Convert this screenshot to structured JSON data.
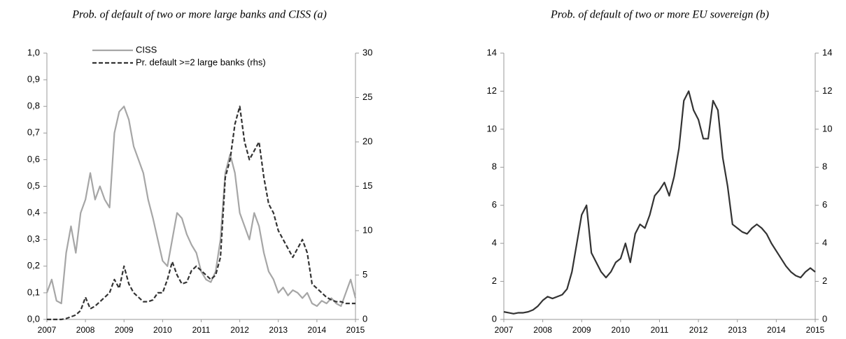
{
  "chart_data": [
    {
      "type": "line",
      "title": "Prob. of default of two or more large banks and CISS (a)",
      "x": [
        2007,
        2007.125,
        2007.25,
        2007.375,
        2007.5,
        2007.625,
        2007.75,
        2007.875,
        2008,
        2008.125,
        2008.25,
        2008.375,
        2008.5,
        2008.625,
        2008.75,
        2008.875,
        2009,
        2009.125,
        2009.25,
        2009.375,
        2009.5,
        2009.625,
        2009.75,
        2009.875,
        2010,
        2010.125,
        2010.25,
        2010.375,
        2010.5,
        2010.625,
        2010.75,
        2010.875,
        2011,
        2011.125,
        2011.25,
        2011.375,
        2011.5,
        2011.625,
        2011.75,
        2011.875,
        2012,
        2012.125,
        2012.25,
        2012.375,
        2012.5,
        2012.625,
        2012.75,
        2012.875,
        2013,
        2013.125,
        2013.25,
        2013.375,
        2013.5,
        2013.625,
        2013.75,
        2013.875,
        2014,
        2014.125,
        2014.25,
        2014.375,
        2014.5,
        2014.625,
        2014.75,
        2014.875,
        2015
      ],
      "series": [
        {
          "name": "CISS",
          "color": "#a6a6a6",
          "line_style": "solid",
          "values": [
            0.1,
            0.15,
            0.07,
            0.06,
            0.25,
            0.35,
            0.25,
            0.4,
            0.45,
            0.55,
            0.45,
            0.5,
            0.45,
            0.42,
            0.7,
            0.78,
            0.8,
            0.75,
            0.65,
            0.6,
            0.55,
            0.45,
            0.38,
            0.3,
            0.22,
            0.2,
            0.3,
            0.4,
            0.38,
            0.32,
            0.28,
            0.25,
            0.18,
            0.15,
            0.14,
            0.18,
            0.3,
            0.55,
            0.62,
            0.55,
            0.4,
            0.35,
            0.3,
            0.4,
            0.35,
            0.25,
            0.18,
            0.15,
            0.1,
            0.12,
            0.09,
            0.11,
            0.1,
            0.08,
            0.1,
            0.06,
            0.05,
            0.07,
            0.06,
            0.08,
            0.06,
            0.05,
            0.1,
            0.15,
            0.08
          ]
        },
        {
          "name": "Pr. default >=2 large banks (rhs)",
          "color": "#333333",
          "line_style": "dashed",
          "axis": "y2",
          "values": [
            0,
            0,
            0,
            0,
            0.1,
            0.3,
            0.5,
            1.0,
            2.5,
            1.2,
            1.5,
            2.0,
            2.5,
            3.0,
            4.5,
            3.5,
            6.0,
            4.0,
            3.0,
            2.5,
            2.0,
            2.0,
            2.2,
            3.0,
            3.0,
            4.5,
            6.5,
            5.0,
            4.0,
            4.2,
            5.5,
            6.0,
            5.5,
            5.0,
            4.5,
            5.0,
            7.0,
            16.0,
            18.0,
            22.0,
            24.0,
            20.0,
            18.0,
            19.0,
            20.0,
            16.0,
            13.0,
            12.0,
            10.0,
            9.0,
            8.0,
            7.0,
            8.0,
            9.0,
            7.5,
            4.0,
            3.5,
            3.0,
            2.5,
            2.2,
            2.0,
            2.0,
            1.8,
            1.8,
            1.8
          ]
        }
      ],
      "xlim": [
        2007,
        2015
      ],
      "xticks": [
        2007,
        2008,
        2009,
        2010,
        2011,
        2012,
        2013,
        2014,
        2015
      ],
      "ylim": [
        0,
        1
      ],
      "yticks": [
        {
          "value": 0,
          "label": "0,0"
        },
        {
          "value": 0.1,
          "label": "0,1"
        },
        {
          "value": 0.2,
          "label": "0,2"
        },
        {
          "value": 0.3,
          "label": "0,3"
        },
        {
          "value": 0.4,
          "label": "0,4"
        },
        {
          "value": 0.5,
          "label": "0,5"
        },
        {
          "value": 0.6,
          "label": "0,6"
        },
        {
          "value": 0.7,
          "label": "0,7"
        },
        {
          "value": 0.8,
          "label": "0,8"
        },
        {
          "value": 0.9,
          "label": "0,9"
        },
        {
          "value": 1,
          "label": "1,0"
        }
      ],
      "y2lim": [
        0,
        30
      ],
      "y2ticks": [
        0,
        5,
        10,
        15,
        20,
        25,
        30
      ],
      "legend": "upper left"
    },
    {
      "type": "line",
      "title": "Prob. of default of two or more EU sovereign (b)",
      "x": [
        2007,
        2007.125,
        2007.25,
        2007.375,
        2007.5,
        2007.625,
        2007.75,
        2007.875,
        2008,
        2008.125,
        2008.25,
        2008.375,
        2008.5,
        2008.625,
        2008.75,
        2008.875,
        2009,
        2009.125,
        2009.25,
        2009.375,
        2009.5,
        2009.625,
        2009.75,
        2009.875,
        2010,
        2010.125,
        2010.25,
        2010.375,
        2010.5,
        2010.625,
        2010.75,
        2010.875,
        2011,
        2011.125,
        2011.25,
        2011.375,
        2011.5,
        2011.625,
        2011.75,
        2011.875,
        2012,
        2012.125,
        2012.25,
        2012.375,
        2012.5,
        2012.625,
        2012.75,
        2012.875,
        2013,
        2013.125,
        2013.25,
        2013.375,
        2013.5,
        2013.625,
        2013.75,
        2013.875,
        2014,
        2014.125,
        2014.25,
        2014.375,
        2014.5,
        2014.625,
        2014.75,
        2014.875,
        2015
      ],
      "series": [
        {
          "color": "#333333",
          "line_style": "solid",
          "values": [
            0.4,
            0.35,
            0.3,
            0.35,
            0.35,
            0.4,
            0.5,
            0.7,
            1.0,
            1.2,
            1.1,
            1.2,
            1.3,
            1.6,
            2.5,
            4.0,
            5.5,
            6.0,
            3.5,
            3.0,
            2.5,
            2.2,
            2.5,
            3.0,
            3.2,
            4.0,
            3.0,
            4.5,
            5.0,
            4.8,
            5.5,
            6.5,
            6.8,
            7.2,
            6.5,
            7.5,
            9.0,
            11.5,
            12.0,
            11.0,
            10.5,
            9.5,
            9.5,
            11.5,
            11.0,
            8.5,
            7.0,
            5.0,
            4.8,
            4.6,
            4.5,
            4.8,
            5.0,
            4.8,
            4.5,
            4.0,
            3.6,
            3.2,
            2.8,
            2.5,
            2.3,
            2.2,
            2.5,
            2.7,
            2.5
          ]
        }
      ],
      "xlim": [
        2007,
        2015
      ],
      "xticks": [
        2007,
        2008,
        2009,
        2010,
        2011,
        2012,
        2013,
        2014,
        2015
      ],
      "ylim": [
        0,
        14
      ],
      "yticks": [
        0,
        2,
        4,
        6,
        8,
        10,
        12,
        14
      ],
      "y2lim": [
        0,
        14
      ],
      "y2ticks": [
        0,
        2,
        4,
        6,
        8,
        10,
        12,
        14
      ]
    }
  ]
}
